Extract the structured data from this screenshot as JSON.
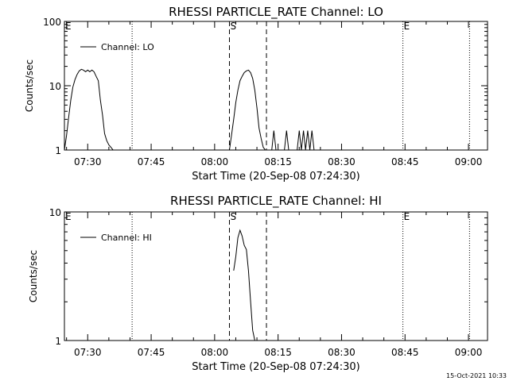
{
  "footer": {
    "timestamp": "15-Oct-2021 10:33"
  },
  "chart_data": [
    {
      "type": "line",
      "title": "RHESSI PARTICLE_RATE Channel: LO",
      "xlabel": "Start Time (20-Sep-08 07:24:30)",
      "ylabel": "Counts/sec",
      "yscale": "log",
      "ylim": [
        1,
        100
      ],
      "xlim": [
        "07:24:30",
        "09:04:30"
      ],
      "x_ticks": [
        "07:30",
        "07:45",
        "08:00",
        "08:15",
        "08:30",
        "08:45",
        "09:00"
      ],
      "y_ticks": [
        "1",
        "10",
        "100"
      ],
      "legend": {
        "entries": [
          "Channel: LO"
        ],
        "placement": "top-left"
      },
      "grid": false,
      "markers": [
        {
          "label": "E",
          "time": "07:24:30",
          "style": "dotted"
        },
        {
          "label": "",
          "time": "07:40:30",
          "style": "dotted"
        },
        {
          "label": "S",
          "time": "08:03:30",
          "style": "dashed"
        },
        {
          "label": "",
          "time": "08:12:15",
          "style": "dashed"
        },
        {
          "label": "E",
          "time": "08:44:30",
          "style": "dotted"
        },
        {
          "label": "",
          "time": "09:00:15",
          "style": "dotted"
        }
      ],
      "series": [
        {
          "name": "Channel: LO",
          "x": [
            "07:24:30",
            "07:25:00",
            "07:25:30",
            "07:26:00",
            "07:26:30",
            "07:27:00",
            "07:27:30",
            "07:28:00",
            "07:28:30",
            "07:29:00",
            "07:29:30",
            "07:30:00",
            "07:30:30",
            "07:31:00",
            "07:31:30",
            "07:32:00",
            "07:32:30",
            "07:33:00",
            "07:33:30",
            "07:34:00",
            "07:34:30",
            "07:35:00",
            "07:35:30",
            "07:36:00",
            "08:03:30",
            "08:04:00",
            "08:04:30",
            "08:05:00",
            "08:05:30",
            "08:06:00",
            "08:06:30",
            "08:07:00",
            "08:07:30",
            "08:08:00",
            "08:08:30",
            "08:09:00",
            "08:09:30",
            "08:10:00",
            "08:10:30",
            "08:11:00",
            "08:11:30",
            "08:12:00",
            "08:13:30",
            "08:14:00",
            "08:14:30",
            "08:16:30",
            "08:17:00",
            "08:17:30",
            "08:19:30",
            "08:20:00",
            "08:20:30",
            "08:21:00",
            "08:21:30",
            "08:22:00",
            "08:22:30",
            "08:23:00",
            "08:23:30"
          ],
          "values": [
            1,
            1.7,
            3.2,
            6,
            9.5,
            12.5,
            15,
            17,
            18,
            17.5,
            16.5,
            17.5,
            16.5,
            17.5,
            16.5,
            14,
            12,
            6,
            3.5,
            1.8,
            1.4,
            1.2,
            1.1,
            1,
            1,
            1.7,
            3,
            5.5,
            8.5,
            12,
            14,
            16,
            17,
            17.5,
            16,
            13,
            8.5,
            4.5,
            2.2,
            1.5,
            1.1,
            1,
            1,
            2,
            1,
            1,
            2,
            1,
            1,
            2,
            1,
            2,
            1,
            2,
            1,
            2,
            1
          ]
        }
      ]
    },
    {
      "type": "line",
      "title": "RHESSI PARTICLE_RATE Channel: HI",
      "xlabel": "Start Time (20-Sep-08 07:24:30)",
      "ylabel": "Counts/sec",
      "yscale": "log",
      "ylim": [
        1,
        10
      ],
      "xlim": [
        "07:24:30",
        "09:04:30"
      ],
      "x_ticks": [
        "07:30",
        "07:45",
        "08:00",
        "08:15",
        "08:30",
        "08:45",
        "09:00"
      ],
      "y_ticks": [
        "1",
        "10"
      ],
      "legend": {
        "entries": [
          "Channel: HI"
        ],
        "placement": "top-left"
      },
      "grid": false,
      "markers": [
        {
          "label": "E",
          "time": "07:24:30",
          "style": "dotted"
        },
        {
          "label": "",
          "time": "07:40:30",
          "style": "dotted"
        },
        {
          "label": "S",
          "time": "08:03:30",
          "style": "dashed"
        },
        {
          "label": "",
          "time": "08:12:15",
          "style": "dashed"
        },
        {
          "label": "E",
          "time": "08:44:30",
          "style": "dotted"
        },
        {
          "label": "",
          "time": "09:00:15",
          "style": "dotted"
        }
      ],
      "series": [
        {
          "name": "Channel: HI",
          "x": [
            "08:04:30",
            "08:05:00",
            "08:05:30",
            "08:06:00",
            "08:06:30",
            "08:07:00",
            "08:07:30",
            "08:08:00",
            "08:08:30",
            "08:09:00",
            "08:09:30"
          ],
          "values": [
            3.5,
            4.5,
            6.3,
            7.2,
            6.5,
            5.5,
            5.1,
            3.5,
            2,
            1.2,
            1
          ]
        }
      ]
    }
  ]
}
